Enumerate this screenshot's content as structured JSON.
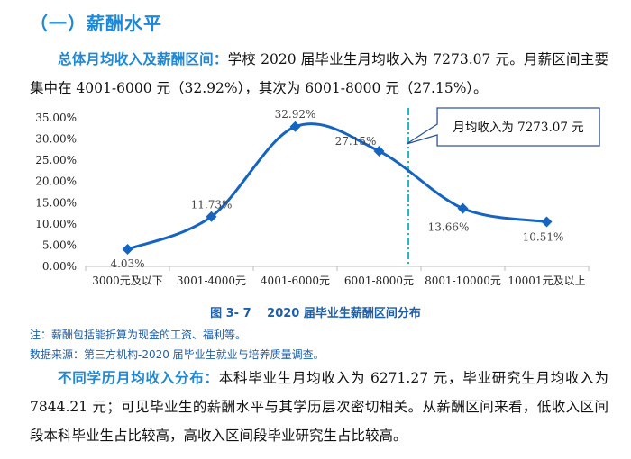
{
  "section": {
    "heading": "（一）薪酬水平"
  },
  "para1": {
    "lead": "总体月均收入及薪酬区间：",
    "text": "学校 2020 届毕业生月均收入为 7273.07 元。月薪区间主要集中在 4001-6000 元（32.92%），其次为 6001-8000 元（27.15%）。"
  },
  "chart_data": {
    "type": "line",
    "categories": [
      "3000元及以下",
      "3001-4000元",
      "4001-6000元",
      "6001-8000元",
      "8001-10000元",
      "10001元及以上"
    ],
    "values": [
      4.03,
      11.73,
      32.92,
      27.15,
      13.66,
      10.51
    ],
    "value_labels": [
      "4.03%",
      "11.73%",
      "32.92%",
      "27.15%",
      "13.66%",
      "10.51%"
    ],
    "ylim": [
      0,
      35
    ],
    "y_ticks": [
      "0.00%",
      "5.00%",
      "10.00%",
      "15.00%",
      "20.00%",
      "25.00%",
      "30.00%",
      "35.00%"
    ],
    "series_color": "#1565c0",
    "marker": "diamond",
    "smooth": true,
    "reference_line": {
      "position_between": [
        3,
        4
      ],
      "color": "#1fb8c2",
      "style": "dash-dot"
    },
    "annotation": "月均收入为 7273.07 元"
  },
  "figure": {
    "caption": "图 3- 7　 2020 届毕业生薪酬区间分布"
  },
  "notes": {
    "note1": "注：薪酬包括能折算为现金的工资、福利等。",
    "note2": "数据来源：第三方机构-2020 届毕业生就业与培养质量调查。"
  },
  "para3": {
    "lead": "不同学历月均收入分布：",
    "text": "本科毕业生月均收入为 6271.27 元，毕业研究生月均收入为 7844.21 元；可见毕业生的薪酬水平与其学历层次密切相关。从薪酬区间来看，低收入区间段本科毕业生占比较高，高收入区间段毕业研究生占比较高。"
  }
}
